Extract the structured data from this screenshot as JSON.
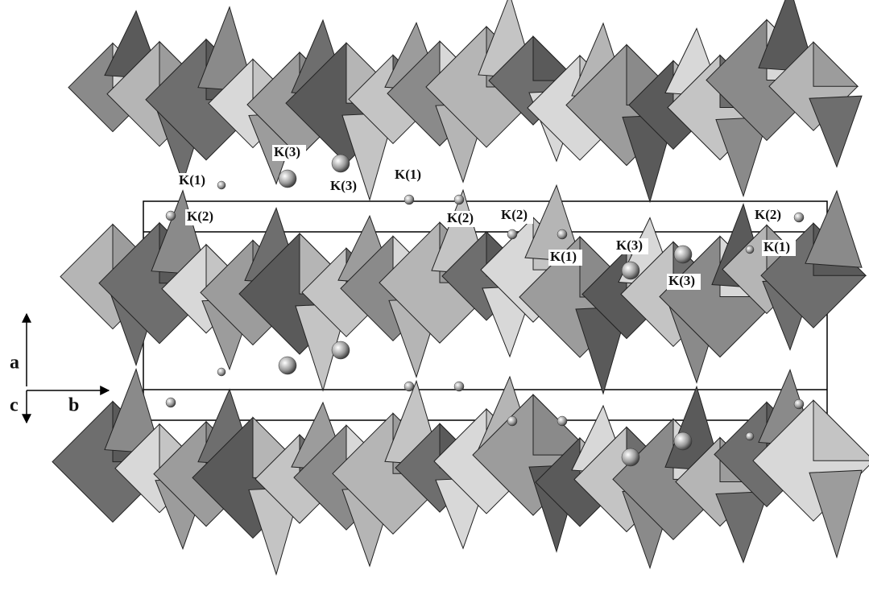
{
  "atom_labels": [
    "K(1)",
    "K(3)",
    "K(3)",
    "K(1)",
    "K(2)",
    "K(2)",
    "K(2)",
    "K(1)",
    "K(3)",
    "K(3)",
    "K(2)",
    "K(1)"
  ],
  "axes": {
    "a": "a",
    "c": "c",
    "b": "b"
  }
}
